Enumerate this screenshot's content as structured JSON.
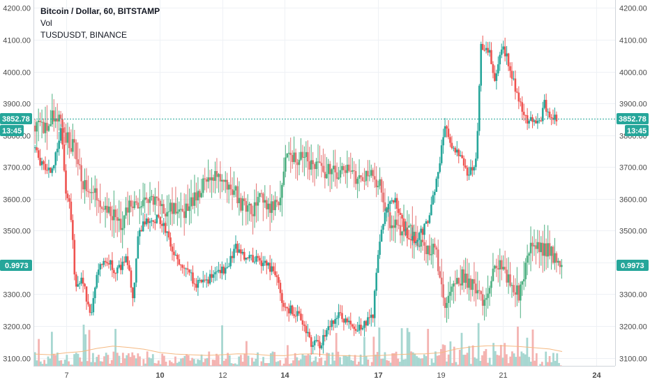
{
  "legend": {
    "main": "Bitcoin / Dollar, 60, BITSTAMP",
    "vol": "Vol",
    "overlay": "TUSDUSDT, BINANCE"
  },
  "colors": {
    "up": "#26a69a",
    "down": "#ef5350",
    "vol_up": "#a7d7d1",
    "vol_down": "#f4b3b1",
    "vol_ma": "#f5b982",
    "price_line": "#26a69a",
    "badge": "#26a69a",
    "overlay_up": "#4caf80",
    "overlay_down": "#e57373"
  },
  "badges": {
    "price": "3852.78",
    "time": "13:45",
    "overlay": "0.9973"
  },
  "chart_data": {
    "type": "candlestick",
    "y_axis": {
      "min": 3075,
      "max": 4225,
      "ticks": [
        "3100.00",
        "3200.00",
        "3300.00",
        "3400.00",
        "3500.00",
        "3600.00",
        "3700.00",
        "3800.00",
        "3900.00",
        "4000.00",
        "4100.00",
        "4200.00"
      ],
      "tick_values": [
        3100,
        3200,
        3300,
        3400,
        3500,
        3600,
        3700,
        3800,
        3900,
        4000,
        4100,
        4200
      ]
    },
    "x_axis": {
      "min_day": 5.95,
      "max_day": 24.6,
      "ticks": [
        "7",
        "10",
        "12",
        "14",
        "17",
        "19",
        "21",
        "24"
      ],
      "tick_days": [
        7,
        10,
        12,
        14,
        17,
        19,
        21,
        24
      ],
      "bold_ticks": [
        "10",
        "14",
        "17",
        "24"
      ]
    },
    "last_price": 3852.78,
    "overlay_last": 0.9973,
    "btc_path": [
      [
        6.0,
        3760
      ],
      [
        6.3,
        3700
      ],
      [
        6.6,
        3690
      ],
      [
        6.9,
        3820
      ],
      [
        7.05,
        3620
      ],
      [
        7.2,
        3560
      ],
      [
        7.35,
        3330
      ],
      [
        7.6,
        3340
      ],
      [
        7.85,
        3220
      ],
      [
        8.05,
        3380
      ],
      [
        8.4,
        3400
      ],
      [
        8.7,
        3370
      ],
      [
        9.0,
        3420
      ],
      [
        9.2,
        3280
      ],
      [
        9.35,
        3480
      ],
      [
        9.6,
        3530
      ],
      [
        10.0,
        3540
      ],
      [
        10.3,
        3490
      ],
      [
        10.6,
        3410
      ],
      [
        10.9,
        3390
      ],
      [
        11.2,
        3330
      ],
      [
        11.6,
        3340
      ],
      [
        11.9,
        3380
      ],
      [
        12.2,
        3380
      ],
      [
        12.5,
        3450
      ],
      [
        12.8,
        3420
      ],
      [
        13.1,
        3410
      ],
      [
        13.5,
        3390
      ],
      [
        13.8,
        3360
      ],
      [
        14.0,
        3250
      ],
      [
        14.3,
        3250
      ],
      [
        14.6,
        3220
      ],
      [
        14.9,
        3150
      ],
      [
        15.2,
        3140
      ],
      [
        15.5,
        3200
      ],
      [
        15.8,
        3230
      ],
      [
        16.1,
        3210
      ],
      [
        16.4,
        3190
      ],
      [
        16.7,
        3210
      ],
      [
        16.9,
        3240
      ],
      [
        17.0,
        3380
      ],
      [
        17.3,
        3580
      ],
      [
        17.6,
        3600
      ],
      [
        17.9,
        3500
      ],
      [
        18.2,
        3470
      ],
      [
        18.5,
        3500
      ],
      [
        18.7,
        3540
      ],
      [
        19.0,
        3700
      ],
      [
        19.2,
        3820
      ],
      [
        19.45,
        3760
      ],
      [
        19.7,
        3730
      ],
      [
        19.9,
        3680
      ],
      [
        20.2,
        3720
      ],
      [
        20.35,
        4080
      ],
      [
        20.6,
        4070
      ],
      [
        20.8,
        3980
      ],
      [
        21.0,
        4080
      ],
      [
        21.2,
        4040
      ],
      [
        21.45,
        3950
      ],
      [
        21.7,
        3860
      ],
      [
        22.0,
        3840
      ],
      [
        22.2,
        3830
      ],
      [
        22.4,
        3900
      ],
      [
        22.6,
        3840
      ],
      [
        22.75,
        3853
      ]
    ],
    "tusd_path": [
      [
        6.0,
        3830
      ],
      [
        6.3,
        3820
      ],
      [
        6.7,
        3870
      ],
      [
        7.0,
        3800
      ],
      [
        7.3,
        3760
      ],
      [
        7.6,
        3650
      ],
      [
        7.9,
        3640
      ],
      [
        8.2,
        3580
      ],
      [
        8.5,
        3560
      ],
      [
        8.8,
        3510
      ],
      [
        9.1,
        3580
      ],
      [
        9.4,
        3560
      ],
      [
        9.7,
        3600
      ],
      [
        10.0,
        3600
      ],
      [
        10.3,
        3560
      ],
      [
        10.6,
        3580
      ],
      [
        10.9,
        3560
      ],
      [
        11.2,
        3600
      ],
      [
        11.5,
        3660
      ],
      [
        11.8,
        3680
      ],
      [
        12.1,
        3640
      ],
      [
        12.4,
        3630
      ],
      [
        12.7,
        3580
      ],
      [
        13.0,
        3560
      ],
      [
        13.3,
        3600
      ],
      [
        13.6,
        3580
      ],
      [
        13.9,
        3590
      ],
      [
        14.1,
        3740
      ],
      [
        14.4,
        3720
      ],
      [
        14.7,
        3730
      ],
      [
        15.0,
        3700
      ],
      [
        15.3,
        3690
      ],
      [
        15.6,
        3680
      ],
      [
        15.9,
        3690
      ],
      [
        16.2,
        3680
      ],
      [
        16.5,
        3660
      ],
      [
        16.8,
        3670
      ],
      [
        17.1,
        3640
      ],
      [
        17.4,
        3530
      ],
      [
        17.7,
        3510
      ],
      [
        18.0,
        3500
      ],
      [
        18.3,
        3480
      ],
      [
        18.6,
        3430
      ],
      [
        18.9,
        3440
      ],
      [
        19.2,
        3270
      ],
      [
        19.5,
        3330
      ],
      [
        19.8,
        3360
      ],
      [
        20.1,
        3320
      ],
      [
        20.4,
        3280
      ],
      [
        20.7,
        3360
      ],
      [
        21.0,
        3390
      ],
      [
        21.3,
        3330
      ],
      [
        21.6,
        3300
      ],
      [
        21.9,
        3440
      ],
      [
        22.2,
        3450
      ],
      [
        22.5,
        3440
      ],
      [
        22.9,
        3400
      ]
    ],
    "vol_ma_path": [
      [
        6.0,
        3112
      ],
      [
        6.5,
        3110
      ],
      [
        7.0,
        3116
      ],
      [
        7.5,
        3120
      ],
      [
        8.0,
        3130
      ],
      [
        8.5,
        3137
      ],
      [
        9.0,
        3133
      ],
      [
        9.5,
        3127
      ],
      [
        10.0,
        3117
      ],
      [
        10.5,
        3112
      ],
      [
        11.0,
        3110
      ],
      [
        11.5,
        3108
      ],
      [
        12.0,
        3110
      ],
      [
        12.5,
        3113
      ],
      [
        13.0,
        3112
      ],
      [
        13.5,
        3108
      ],
      [
        14.0,
        3107
      ],
      [
        14.5,
        3112
      ],
      [
        15.0,
        3113
      ],
      [
        15.5,
        3108
      ],
      [
        16.0,
        3107
      ],
      [
        16.5,
        3105
      ],
      [
        17.0,
        3107
      ],
      [
        17.5,
        3110
      ],
      [
        18.0,
        3112
      ],
      [
        18.5,
        3113
      ],
      [
        19.0,
        3116
      ],
      [
        19.5,
        3128
      ],
      [
        20.0,
        3135
      ],
      [
        20.5,
        3138
      ],
      [
        21.0,
        3138
      ],
      [
        21.5,
        3136
      ],
      [
        22.0,
        3132
      ],
      [
        22.5,
        3128
      ],
      [
        22.9,
        3120
      ]
    ]
  }
}
